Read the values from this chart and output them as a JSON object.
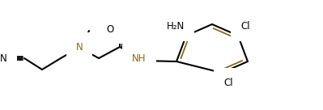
{
  "bg": "#ffffff",
  "bc": "#000000",
  "ac": "#8B6914",
  "lw": 1.5,
  "alw": 1.3,
  "fs": 8.5,
  "figsize": [
    3.99,
    1.36
  ],
  "dpi": 100,
  "xlim": [
    0,
    399
  ],
  "ylim": [
    0,
    136
  ]
}
